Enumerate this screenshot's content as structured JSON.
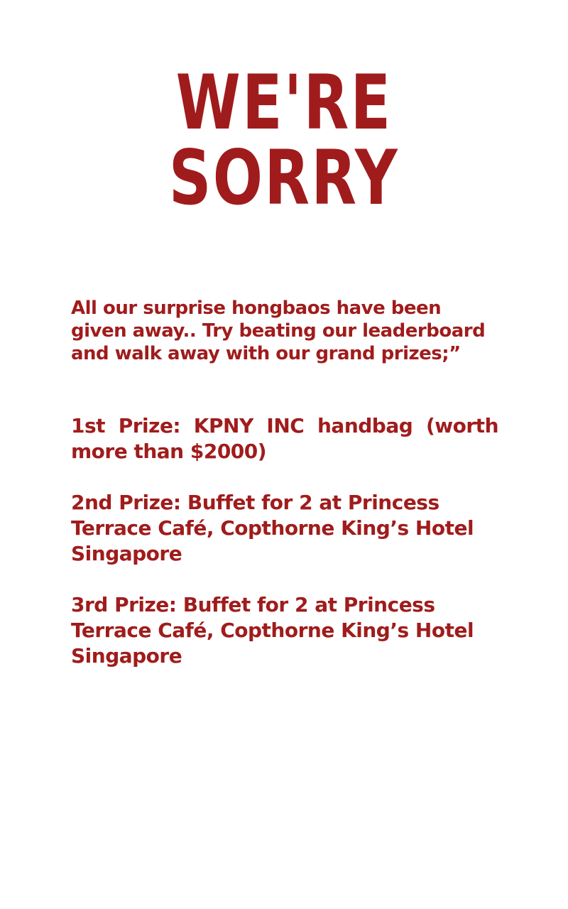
{
  "title": "WE'RE SORRY",
  "message": "All our surprise hongbaos have been given away.. Try beating our leaderboard and walk away with our grand prizes;”",
  "prizes": [
    "1st Prize: KPNY INC handbag (worth more than $2000)",
    "2nd Prize: Buffet for 2 at Princess Terrace Café, Copthorne King’s Hotel Singapore",
    "3rd Prize: Buffet for 2 at Princess Terrace Café, Copthorne King’s Hotel Singapore"
  ],
  "colors": {
    "text": "#a01c1c",
    "background": "#ffffff"
  }
}
